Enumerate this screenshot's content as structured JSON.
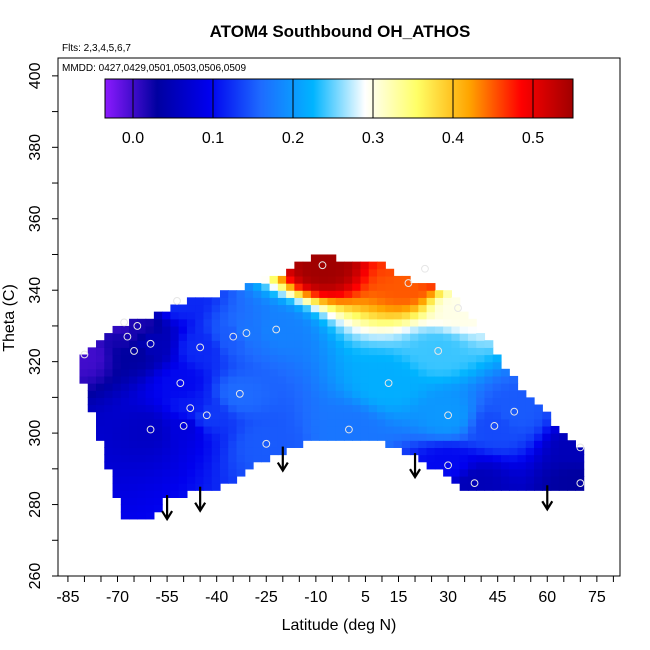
{
  "chart_data": {
    "type": "heatmap",
    "title": "ATOM4 Southbound OH_ATHOS",
    "flights_note": "Flts: 2,3,4,5,6,7",
    "dates_note": "MMDD: 0427,0429,0501,0503,0506,0509",
    "xlabel": "Latitude (deg N)",
    "ylabel": "Theta (C)",
    "xlim": [
      -88,
      82
    ],
    "ylim": [
      260,
      405
    ],
    "x_ticks": [
      -85,
      -70,
      -55,
      -40,
      -25,
      -10,
      5,
      15,
      30,
      45,
      60,
      75
    ],
    "y_ticks": [
      260,
      280,
      300,
      320,
      340,
      360,
      380,
      400
    ],
    "colorbar": {
      "range": [
        -0.035,
        0.55
      ],
      "ticks": [
        0.0,
        0.1,
        0.2,
        0.3,
        0.4,
        0.5
      ],
      "tick_labels": [
        "0.0",
        "0.1",
        "0.2",
        "0.3",
        "0.4",
        "0.5"
      ],
      "colors": [
        "#8c1aff",
        "#0000a0",
        "#0000ee",
        "#1e6bff",
        "#00b4ff",
        "#ffffff",
        "#ffff66",
        "#ffa500",
        "#ff0000",
        "#a00000"
      ]
    },
    "domain": {
      "bottom": [
        [
          -68,
          276
        ],
        [
          -60,
          276
        ],
        [
          -56,
          281
        ],
        [
          -48,
          283
        ],
        [
          -38,
          285
        ],
        [
          -30,
          290
        ],
        [
          -22,
          294
        ],
        [
          -10,
          299
        ],
        [
          0,
          299
        ],
        [
          10,
          297
        ],
        [
          20,
          293
        ],
        [
          28,
          289
        ],
        [
          35,
          284
        ],
        [
          70,
          284
        ]
      ],
      "top": [
        [
          70,
          295
        ],
        [
          60,
          305
        ],
        [
          50,
          315
        ],
        [
          40,
          328
        ],
        [
          30,
          340
        ],
        [
          20,
          342
        ],
        [
          10,
          347
        ],
        [
          -3,
          349
        ],
        [
          -10,
          350
        ],
        [
          -20,
          345
        ],
        [
          -35,
          340
        ],
        [
          -50,
          337
        ],
        [
          -60,
          333
        ],
        [
          -70,
          330
        ],
        [
          -77,
          324
        ],
        [
          -83,
          322
        ]
      ],
      "left_bottom": [
        -68,
        276
      ],
      "left_top": [
        -83,
        322
      ]
    },
    "series": [
      {
        "name": "",
        "points": [
          [
            -80,
            322,
            0.0
          ],
          [
            -68,
            331,
            0.0
          ],
          [
            -67,
            327,
            0.02
          ],
          [
            -65,
            323,
            0.03
          ],
          [
            -64,
            330,
            0.02
          ],
          [
            -60,
            325,
            0.05
          ],
          [
            -60,
            301,
            0.06
          ],
          [
            -52,
            337,
            0.12
          ],
          [
            -51,
            314,
            0.1
          ],
          [
            -50,
            302,
            0.08
          ],
          [
            -48,
            307,
            0.11
          ],
          [
            -45,
            324,
            0.12
          ],
          [
            -43,
            305,
            0.13
          ],
          [
            -35,
            327,
            0.15
          ],
          [
            -33,
            311,
            0.16
          ],
          [
            -31,
            328,
            0.17
          ],
          [
            -25,
            297,
            0.15
          ],
          [
            -22,
            329,
            0.18
          ],
          [
            -8,
            347,
            0.55
          ],
          [
            0,
            301,
            0.17
          ],
          [
            18,
            342,
            0.45
          ],
          [
            12,
            314,
            0.22
          ],
          [
            23,
            346,
            0.5
          ],
          [
            27,
            323,
            0.24
          ],
          [
            30,
            305,
            0.2
          ],
          [
            30,
            291,
            0.1
          ],
          [
            33,
            335,
            0.3
          ],
          [
            38,
            286,
            0.05
          ],
          [
            44,
            302,
            0.14
          ],
          [
            50,
            306,
            0.15
          ],
          [
            70,
            296,
            0.05
          ],
          [
            70,
            286,
            0.03
          ]
        ]
      }
    ],
    "arrow_latitudes": [
      -55,
      -45,
      -20,
      20,
      60
    ]
  }
}
